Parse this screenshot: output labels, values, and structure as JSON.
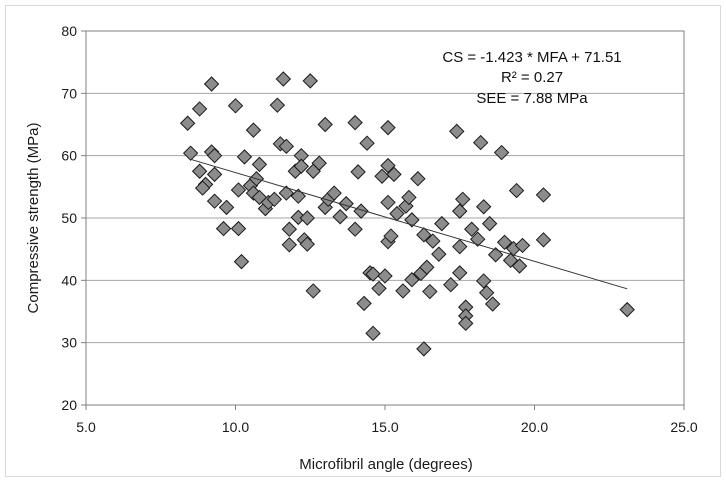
{
  "chart_data": {
    "type": "scatter",
    "xlabel": "Microfibril angle (degrees)",
    "ylabel": "Compressive strength (MPa)",
    "xlim": [
      5.0,
      25.0
    ],
    "ylim": [
      20,
      80
    ],
    "x_ticks": [
      "5.0",
      "10.0",
      "15.0",
      "20.0",
      "25.0"
    ],
    "y_ticks": [
      "20",
      "30",
      "40",
      "50",
      "60",
      "70",
      "80"
    ],
    "grid": "horizontal",
    "marker": "diamond",
    "marker_color": "#8c8c8c",
    "trendline_color": "#333333",
    "annotations": [
      "CS = -1.423 * MFA + 71.51",
      "R² = 0.27",
      "SEE = 7.88 MPa"
    ],
    "trendline": {
      "slope": -1.423,
      "intercept": 71.51,
      "x_range": [
        8.5,
        23.1
      ]
    },
    "points": [
      [
        8.4,
        65.2
      ],
      [
        8.5,
        60.4
      ],
      [
        8.8,
        67.5
      ],
      [
        8.8,
        57.5
      ],
      [
        9.0,
        55.4
      ],
      [
        8.9,
        54.8
      ],
      [
        9.2,
        71.5
      ],
      [
        9.2,
        60.6
      ],
      [
        9.3,
        60.0
      ],
      [
        9.3,
        57.0
      ],
      [
        9.3,
        52.7
      ],
      [
        9.6,
        48.3
      ],
      [
        9.7,
        51.7
      ],
      [
        10.0,
        68.0
      ],
      [
        10.1,
        54.5
      ],
      [
        10.1,
        48.3
      ],
      [
        10.2,
        43.0
      ],
      [
        10.3,
        59.8
      ],
      [
        10.5,
        55.2
      ],
      [
        10.6,
        54.0
      ],
      [
        10.6,
        64.1
      ],
      [
        10.7,
        56.3
      ],
      [
        10.8,
        58.6
      ],
      [
        10.8,
        53.3
      ],
      [
        11.0,
        51.5
      ],
      [
        11.1,
        52.5
      ],
      [
        11.3,
        53.0
      ],
      [
        11.4,
        68.1
      ],
      [
        11.5,
        61.9
      ],
      [
        11.6,
        72.3
      ],
      [
        11.7,
        61.5
      ],
      [
        11.7,
        54.0
      ],
      [
        11.8,
        48.2
      ],
      [
        11.8,
        45.7
      ],
      [
        12.0,
        57.5
      ],
      [
        12.1,
        53.5
      ],
      [
        12.1,
        50.1
      ],
      [
        12.2,
        60.0
      ],
      [
        12.2,
        58.3
      ],
      [
        12.3,
        46.5
      ],
      [
        12.4,
        45.8
      ],
      [
        12.4,
        50.0
      ],
      [
        12.5,
        72.0
      ],
      [
        12.6,
        57.5
      ],
      [
        12.6,
        38.3
      ],
      [
        12.8,
        58.8
      ],
      [
        13.0,
        65.0
      ],
      [
        13.0,
        51.7
      ],
      [
        13.1,
        53.0
      ],
      [
        13.3,
        54.0
      ],
      [
        13.5,
        50.2
      ],
      [
        13.7,
        52.3
      ],
      [
        14.0,
        65.3
      ],
      [
        14.0,
        48.2
      ],
      [
        14.1,
        57.4
      ],
      [
        14.2,
        51.1
      ],
      [
        14.3,
        36.3
      ],
      [
        14.4,
        62.0
      ],
      [
        14.5,
        41.2
      ],
      [
        14.6,
        41.0
      ],
      [
        14.6,
        31.5
      ],
      [
        14.8,
        38.7
      ],
      [
        14.9,
        56.7
      ],
      [
        15.0,
        40.7
      ],
      [
        15.1,
        64.5
      ],
      [
        15.1,
        58.4
      ],
      [
        15.1,
        52.5
      ],
      [
        15.1,
        46.2
      ],
      [
        15.2,
        47.1
      ],
      [
        15.3,
        57.0
      ],
      [
        15.4,
        50.7
      ],
      [
        15.6,
        38.3
      ],
      [
        15.7,
        51.9
      ],
      [
        15.8,
        53.3
      ],
      [
        15.9,
        40.1
      ],
      [
        15.9,
        49.7
      ],
      [
        16.1,
        56.3
      ],
      [
        16.2,
        41.1
      ],
      [
        16.3,
        47.3
      ],
      [
        16.3,
        29.0
      ],
      [
        16.4,
        42.1
      ],
      [
        16.5,
        38.2
      ],
      [
        16.6,
        46.3
      ],
      [
        16.8,
        44.2
      ],
      [
        16.9,
        49.1
      ],
      [
        17.2,
        39.3
      ],
      [
        17.4,
        63.9
      ],
      [
        17.5,
        51.1
      ],
      [
        17.5,
        45.4
      ],
      [
        17.5,
        41.2
      ],
      [
        17.6,
        53.0
      ],
      [
        17.7,
        35.7
      ],
      [
        17.7,
        34.3
      ],
      [
        17.7,
        33.1
      ],
      [
        17.9,
        48.2
      ],
      [
        18.1,
        46.6
      ],
      [
        18.2,
        62.1
      ],
      [
        18.3,
        51.8
      ],
      [
        18.3,
        39.9
      ],
      [
        18.4,
        38.0
      ],
      [
        18.5,
        49.1
      ],
      [
        18.6,
        36.2
      ],
      [
        18.7,
        44.1
      ],
      [
        18.9,
        60.5
      ],
      [
        19.0,
        46.1
      ],
      [
        19.2,
        43.2
      ],
      [
        19.3,
        45.1
      ],
      [
        19.4,
        54.4
      ],
      [
        19.5,
        42.3
      ],
      [
        19.6,
        45.6
      ],
      [
        20.3,
        53.7
      ],
      [
        20.3,
        46.5
      ],
      [
        23.1,
        35.3
      ]
    ]
  }
}
